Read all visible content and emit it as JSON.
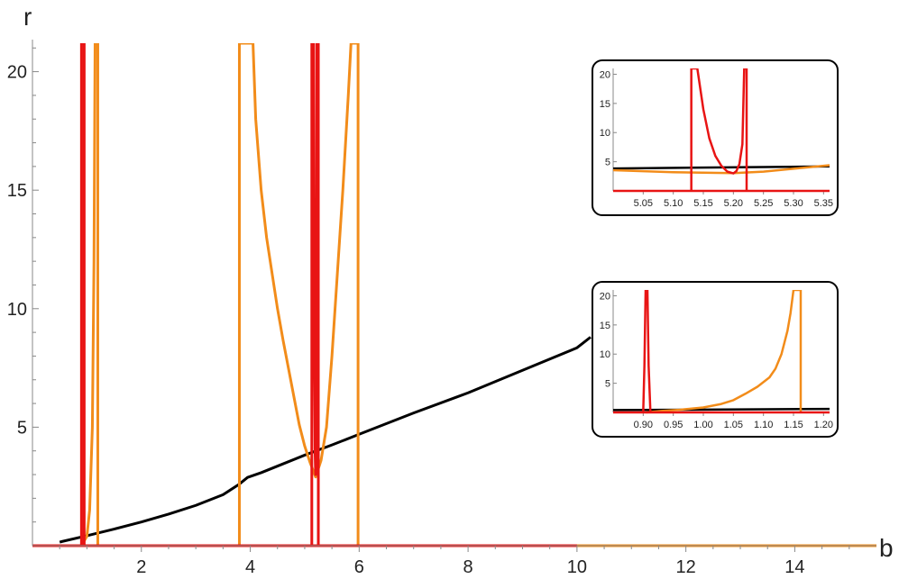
{
  "chart_data": {
    "type": "line",
    "xlabel": "b",
    "ylabel": "r",
    "xlim": [
      0,
      15.5
    ],
    "ylim": [
      0,
      21.2
    ],
    "x_ticks": [
      2,
      4,
      6,
      8,
      10,
      12,
      14
    ],
    "y_ticks": [
      5,
      10,
      15,
      20
    ],
    "colors": {
      "black": "#000000",
      "orange": "#f28c1a",
      "red": "#e81414"
    },
    "series": [
      {
        "color": "black",
        "points": [
          [
            0.5,
            0.15
          ],
          [
            0.55,
            0.18
          ],
          [
            1,
            0.42
          ],
          [
            1.5,
            0.7
          ],
          [
            2,
            1.0
          ],
          [
            2.5,
            1.33
          ],
          [
            3,
            1.7
          ],
          [
            3.5,
            2.15
          ],
          [
            3.8,
            2.6
          ],
          [
            3.95,
            2.88
          ],
          [
            4.2,
            3.08
          ],
          [
            4.6,
            3.45
          ],
          [
            5,
            3.82
          ],
          [
            5.5,
            4.25
          ],
          [
            6,
            4.7
          ],
          [
            7,
            5.6
          ],
          [
            8,
            6.45
          ],
          [
            9,
            7.4
          ],
          [
            10,
            8.35
          ],
          [
            10.25,
            8.8
          ]
        ]
      },
      {
        "color": "orange",
        "points": [
          [
            3.8,
            0
          ],
          [
            3.8,
            21.2
          ],
          [
            3.8,
            21.2
          ],
          [
            4.05,
            21.2
          ],
          [
            4.1,
            18
          ],
          [
            4.2,
            15
          ],
          [
            4.3,
            13
          ],
          [
            4.4,
            11.5
          ],
          [
            4.5,
            10
          ],
          [
            4.6,
            8.7
          ],
          [
            4.7,
            7.5
          ],
          [
            4.8,
            6.3
          ],
          [
            4.9,
            5.1
          ],
          [
            5.0,
            4.2
          ],
          [
            5.1,
            3.5
          ],
          [
            5.2,
            2.9
          ],
          [
            5.3,
            3.6
          ],
          [
            5.4,
            5
          ],
          [
            5.5,
            8
          ],
          [
            5.6,
            11.5
          ],
          [
            5.7,
            15
          ],
          [
            5.8,
            19
          ],
          [
            5.85,
            21.2
          ],
          [
            5.98,
            21.2
          ],
          [
            5.98,
            0
          ]
        ]
      },
      {
        "color": "orange",
        "points": [
          [
            0.9,
            0
          ],
          [
            1.0,
            0.4
          ],
          [
            1.05,
            1.5
          ],
          [
            1.1,
            5
          ],
          [
            1.13,
            12
          ],
          [
            1.15,
            21.2
          ],
          [
            1.2,
            21.2
          ],
          [
            1.2,
            0
          ]
        ]
      },
      {
        "color": "orange",
        "points": [
          [
            0,
            0
          ],
          [
            15.5,
            0
          ]
        ]
      },
      {
        "color": "red",
        "points": [
          [
            0,
            0
          ],
          [
            10,
            0
          ]
        ]
      },
      {
        "color": "red",
        "points": [
          [
            0.9,
            0
          ],
          [
            0.9,
            21.2
          ],
          [
            0.95,
            21.2
          ],
          [
            0.95,
            0
          ]
        ]
      },
      {
        "color": "red",
        "points": [
          [
            5.13,
            0
          ],
          [
            5.13,
            21.2
          ],
          [
            5.16,
            21.2
          ],
          [
            5.17,
            10
          ],
          [
            5.19,
            4
          ],
          [
            5.2,
            3.0
          ],
          [
            5.21,
            6
          ],
          [
            5.22,
            21.2
          ],
          [
            5.25,
            21.2
          ],
          [
            5.25,
            0
          ]
        ]
      }
    ],
    "insets": [
      {
        "id": "inset-top",
        "xlim": [
          5.0,
          5.36
        ],
        "ylim": [
          0,
          21
        ],
        "x_ticks": [
          5.05,
          5.1,
          5.15,
          5.2,
          5.25,
          5.3,
          5.35
        ],
        "x_tick_labels": [
          "5.05",
          "5.10",
          "5.15",
          "5.20",
          "5.25",
          "5.30",
          "5.35"
        ],
        "y_ticks": [
          5,
          10,
          15,
          20
        ],
        "series": [
          {
            "color": "black",
            "points": [
              [
                5.0,
                3.85
              ],
              [
                5.36,
                4.2
              ]
            ]
          },
          {
            "color": "orange",
            "points": [
              [
                5.0,
                3.55
              ],
              [
                5.1,
                3.2
              ],
              [
                5.2,
                3.05
              ],
              [
                5.25,
                3.3
              ],
              [
                5.3,
                3.8
              ],
              [
                5.36,
                4.4
              ]
            ]
          },
          {
            "color": "red",
            "points": [
              [
                5.0,
                0
              ],
              [
                5.36,
                0
              ]
            ]
          },
          {
            "color": "red",
            "points": [
              [
                5.13,
                0
              ],
              [
                5.13,
                21
              ],
              [
                5.14,
                21
              ],
              [
                5.15,
                14
              ],
              [
                5.16,
                9
              ],
              [
                5.17,
                6
              ],
              [
                5.18,
                4.3
              ],
              [
                5.19,
                3.3
              ],
              [
                5.2,
                3.0
              ],
              [
                5.205,
                3.4
              ],
              [
                5.21,
                4.6
              ],
              [
                5.215,
                8
              ],
              [
                5.218,
                21
              ],
              [
                5.222,
                21
              ],
              [
                5.222,
                0
              ]
            ]
          }
        ]
      },
      {
        "id": "inset-bottom",
        "xlim": [
          0.85,
          1.21
        ],
        "ylim": [
          0,
          21
        ],
        "x_ticks": [
          0.9,
          0.95,
          1.0,
          1.05,
          1.1,
          1.15,
          1.2
        ],
        "x_tick_labels": [
          "0.90",
          "0.95",
          "1.00",
          "1.05",
          "1.10",
          "1.15",
          "1.20"
        ],
        "y_ticks": [
          5,
          10,
          15,
          20
        ],
        "series": [
          {
            "color": "black",
            "points": [
              [
                0.85,
                0.4
              ],
              [
                1.21,
                0.6
              ]
            ]
          },
          {
            "color": "orange",
            "points": [
              [
                0.905,
                0.0
              ],
              [
                0.93,
                0.25
              ],
              [
                0.96,
                0.45
              ],
              [
                1.0,
                0.85
              ],
              [
                1.03,
                1.45
              ],
              [
                1.05,
                2.1
              ],
              [
                1.07,
                3.2
              ],
              [
                1.09,
                4.4
              ],
              [
                1.11,
                6.0
              ],
              [
                1.12,
                7.5
              ],
              [
                1.13,
                10
              ],
              [
                1.14,
                14
              ],
              [
                1.145,
                17
              ],
              [
                1.15,
                21
              ],
              [
                1.162,
                21
              ],
              [
                1.162,
                0
              ]
            ]
          },
          {
            "color": "red",
            "points": [
              [
                0.85,
                0
              ],
              [
                1.21,
                0
              ]
            ]
          },
          {
            "color": "red",
            "points": [
              [
                0.9,
                0
              ],
              [
                0.902,
                8
              ],
              [
                0.904,
                21
              ],
              [
                0.907,
                21
              ],
              [
                0.909,
                8
              ],
              [
                0.912,
                0
              ]
            ]
          }
        ]
      }
    ]
  }
}
